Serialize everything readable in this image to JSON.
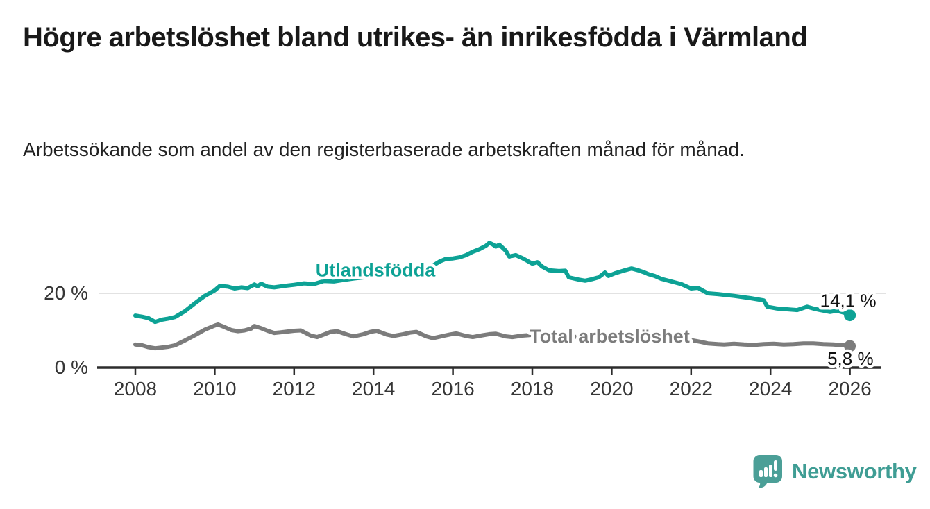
{
  "header": {
    "title": "Högre arbetslöshet bland utrikes- än inrikesfödda i Värmland",
    "subtitle": "Arbetssökande som andel av den registerbaserade arbetskraften månad för månad."
  },
  "colors": {
    "background": "#ffffff",
    "title_text": "#191919",
    "subtitle_text": "#222222",
    "axis": "#2d2d2d",
    "tick_label": "#363636",
    "gridline": "#d9d9d9",
    "value_label": "#111111",
    "series_teal": "#0da295",
    "series_gray": "#7c7c7c",
    "brand_teal": "#3f9d94",
    "brand_icon_teal": "#4b9f97"
  },
  "chart_data": {
    "type": "line",
    "title": "Högre arbetslöshet bland utrikes- än inrikesfödda i Värmland",
    "subtitle": "Arbetssökande som andel av den registerbaserade arbetskraften månad för månad.",
    "xlabel": "",
    "ylabel": "",
    "xlim": [
      2008,
      2026
    ],
    "ylim": [
      0,
      36
    ],
    "grid": "single horizontal gridline at 20 %",
    "legend_position": "inline labels next to lines",
    "x_ticks": [
      2008,
      2010,
      2012,
      2014,
      2016,
      2018,
      2020,
      2022,
      2024,
      2026
    ],
    "y_axis_label": "0 %",
    "y_gridlines": [
      {
        "value": 20,
        "label": "20 %"
      }
    ],
    "series": [
      {
        "name": "Utlandsfödda",
        "color": "#0da295",
        "end_value": 14.1,
        "end_value_label": "14,1 %",
        "label_anchor": {
          "x": 2014.05,
          "y": 26.3
        },
        "points": [
          [
            2008.0,
            14.0
          ],
          [
            2008.17,
            13.7
          ],
          [
            2008.33,
            13.3
          ],
          [
            2008.5,
            12.3
          ],
          [
            2008.67,
            12.9
          ],
          [
            2008.83,
            13.2
          ],
          [
            2009.0,
            13.6
          ],
          [
            2009.25,
            15.2
          ],
          [
            2009.5,
            17.3
          ],
          [
            2009.75,
            19.3
          ],
          [
            2010.0,
            20.8
          ],
          [
            2010.13,
            22.0
          ],
          [
            2010.33,
            21.8
          ],
          [
            2010.5,
            21.3
          ],
          [
            2010.67,
            21.6
          ],
          [
            2010.83,
            21.4
          ],
          [
            2011.0,
            22.4
          ],
          [
            2011.08,
            21.9
          ],
          [
            2011.17,
            22.6
          ],
          [
            2011.33,
            21.8
          ],
          [
            2011.5,
            21.6
          ],
          [
            2011.75,
            22.0
          ],
          [
            2012.0,
            22.3
          ],
          [
            2012.25,
            22.7
          ],
          [
            2012.5,
            22.5
          ],
          [
            2012.75,
            23.3
          ],
          [
            2013.0,
            23.2
          ],
          [
            2013.25,
            23.6
          ],
          [
            2013.5,
            24.0
          ],
          [
            2013.75,
            24.3
          ],
          [
            2014.0,
            24.6
          ],
          [
            2014.25,
            25.0
          ],
          [
            2014.5,
            25.3
          ],
          [
            2014.75,
            25.7
          ],
          [
            2015.0,
            26.0
          ],
          [
            2015.25,
            26.6
          ],
          [
            2015.5,
            27.5
          ],
          [
            2015.67,
            28.6
          ],
          [
            2015.83,
            29.3
          ],
          [
            2016.0,
            29.4
          ],
          [
            2016.17,
            29.7
          ],
          [
            2016.33,
            30.3
          ],
          [
            2016.5,
            31.2
          ],
          [
            2016.67,
            31.9
          ],
          [
            2016.83,
            32.8
          ],
          [
            2016.92,
            33.6
          ],
          [
            2017.0,
            33.2
          ],
          [
            2017.08,
            32.6
          ],
          [
            2017.17,
            33.1
          ],
          [
            2017.33,
            31.5
          ],
          [
            2017.42,
            29.9
          ],
          [
            2017.58,
            30.3
          ],
          [
            2017.75,
            29.5
          ],
          [
            2018.0,
            28.0
          ],
          [
            2018.13,
            28.4
          ],
          [
            2018.25,
            27.2
          ],
          [
            2018.42,
            26.2
          ],
          [
            2018.67,
            26.0
          ],
          [
            2018.83,
            26.1
          ],
          [
            2018.92,
            24.3
          ],
          [
            2019.17,
            23.7
          ],
          [
            2019.33,
            23.4
          ],
          [
            2019.5,
            23.8
          ],
          [
            2019.67,
            24.3
          ],
          [
            2019.83,
            25.6
          ],
          [
            2019.92,
            24.7
          ],
          [
            2020.08,
            25.4
          ],
          [
            2020.33,
            26.2
          ],
          [
            2020.5,
            26.7
          ],
          [
            2020.67,
            26.2
          ],
          [
            2020.83,
            25.6
          ],
          [
            2020.92,
            25.2
          ],
          [
            2021.08,
            24.7
          ],
          [
            2021.25,
            23.9
          ],
          [
            2021.5,
            23.2
          ],
          [
            2021.75,
            22.5
          ],
          [
            2022.0,
            21.3
          ],
          [
            2022.17,
            21.5
          ],
          [
            2022.42,
            20.0
          ],
          [
            2022.67,
            19.8
          ],
          [
            2022.83,
            19.6
          ],
          [
            2023.08,
            19.3
          ],
          [
            2023.5,
            18.7
          ],
          [
            2023.83,
            18.1
          ],
          [
            2023.92,
            16.4
          ],
          [
            2024.17,
            15.9
          ],
          [
            2024.42,
            15.7
          ],
          [
            2024.67,
            15.5
          ],
          [
            2024.92,
            16.4
          ],
          [
            2025.08,
            15.9
          ],
          [
            2025.25,
            15.5
          ],
          [
            2025.5,
            15.0
          ],
          [
            2025.67,
            15.3
          ],
          [
            2025.92,
            14.6
          ],
          [
            2026.0,
            14.1
          ]
        ]
      },
      {
        "name": "Total arbetslöshet",
        "color": "#7c7c7c",
        "end_value": 5.8,
        "end_value_label": "5,8 %",
        "label_anchor": {
          "x": 2019.95,
          "y": 8.4
        },
        "points": [
          [
            2008.0,
            6.2
          ],
          [
            2008.17,
            6.0
          ],
          [
            2008.33,
            5.5
          ],
          [
            2008.5,
            5.2
          ],
          [
            2008.67,
            5.4
          ],
          [
            2008.83,
            5.6
          ],
          [
            2009.0,
            6.0
          ],
          [
            2009.25,
            7.3
          ],
          [
            2009.5,
            8.7
          ],
          [
            2009.75,
            10.2
          ],
          [
            2010.0,
            11.3
          ],
          [
            2010.08,
            11.6
          ],
          [
            2010.25,
            10.9
          ],
          [
            2010.42,
            10.1
          ],
          [
            2010.58,
            9.8
          ],
          [
            2010.75,
            10.0
          ],
          [
            2010.92,
            10.5
          ],
          [
            2011.0,
            11.2
          ],
          [
            2011.17,
            10.6
          ],
          [
            2011.33,
            9.9
          ],
          [
            2011.5,
            9.3
          ],
          [
            2011.67,
            9.5
          ],
          [
            2011.83,
            9.7
          ],
          [
            2012.0,
            9.9
          ],
          [
            2012.17,
            10.0
          ],
          [
            2012.42,
            8.6
          ],
          [
            2012.58,
            8.2
          ],
          [
            2012.75,
            8.9
          ],
          [
            2012.92,
            9.6
          ],
          [
            2013.08,
            9.8
          ],
          [
            2013.33,
            8.9
          ],
          [
            2013.5,
            8.4
          ],
          [
            2013.75,
            9.0
          ],
          [
            2013.92,
            9.6
          ],
          [
            2014.08,
            9.9
          ],
          [
            2014.33,
            8.9
          ],
          [
            2014.5,
            8.5
          ],
          [
            2014.75,
            9.0
          ],
          [
            2014.92,
            9.4
          ],
          [
            2015.08,
            9.6
          ],
          [
            2015.33,
            8.4
          ],
          [
            2015.5,
            7.9
          ],
          [
            2015.75,
            8.5
          ],
          [
            2015.92,
            8.9
          ],
          [
            2016.08,
            9.2
          ],
          [
            2016.33,
            8.5
          ],
          [
            2016.5,
            8.2
          ],
          [
            2016.75,
            8.7
          ],
          [
            2016.92,
            9.0
          ],
          [
            2017.08,
            9.1
          ],
          [
            2017.33,
            8.4
          ],
          [
            2017.5,
            8.2
          ],
          [
            2017.75,
            8.6
          ],
          [
            2018.0,
            8.8
          ],
          [
            2018.33,
            8.0
          ],
          [
            2018.5,
            7.8
          ],
          [
            2018.75,
            8.2
          ],
          [
            2019.0,
            8.4
          ],
          [
            2019.33,
            7.9
          ],
          [
            2019.5,
            7.8
          ],
          [
            2019.75,
            8.2
          ],
          [
            2020.0,
            8.6
          ],
          [
            2020.33,
            9.3
          ],
          [
            2020.5,
            9.5
          ],
          [
            2020.75,
            9.2
          ],
          [
            2021.0,
            8.9
          ],
          [
            2021.33,
            8.2
          ],
          [
            2021.5,
            7.8
          ],
          [
            2021.75,
            7.6
          ],
          [
            2022.0,
            7.4
          ],
          [
            2022.25,
            6.9
          ],
          [
            2022.42,
            6.5
          ],
          [
            2022.67,
            6.3
          ],
          [
            2022.83,
            6.2
          ],
          [
            2023.08,
            6.4
          ],
          [
            2023.33,
            6.2
          ],
          [
            2023.58,
            6.1
          ],
          [
            2023.83,
            6.3
          ],
          [
            2024.08,
            6.4
          ],
          [
            2024.33,
            6.2
          ],
          [
            2024.58,
            6.3
          ],
          [
            2024.83,
            6.5
          ],
          [
            2025.08,
            6.5
          ],
          [
            2025.33,
            6.3
          ],
          [
            2025.58,
            6.2
          ],
          [
            2025.83,
            6.0
          ],
          [
            2026.0,
            5.8
          ]
        ]
      }
    ]
  },
  "footer": {
    "brand_name": "Newsworthy"
  }
}
